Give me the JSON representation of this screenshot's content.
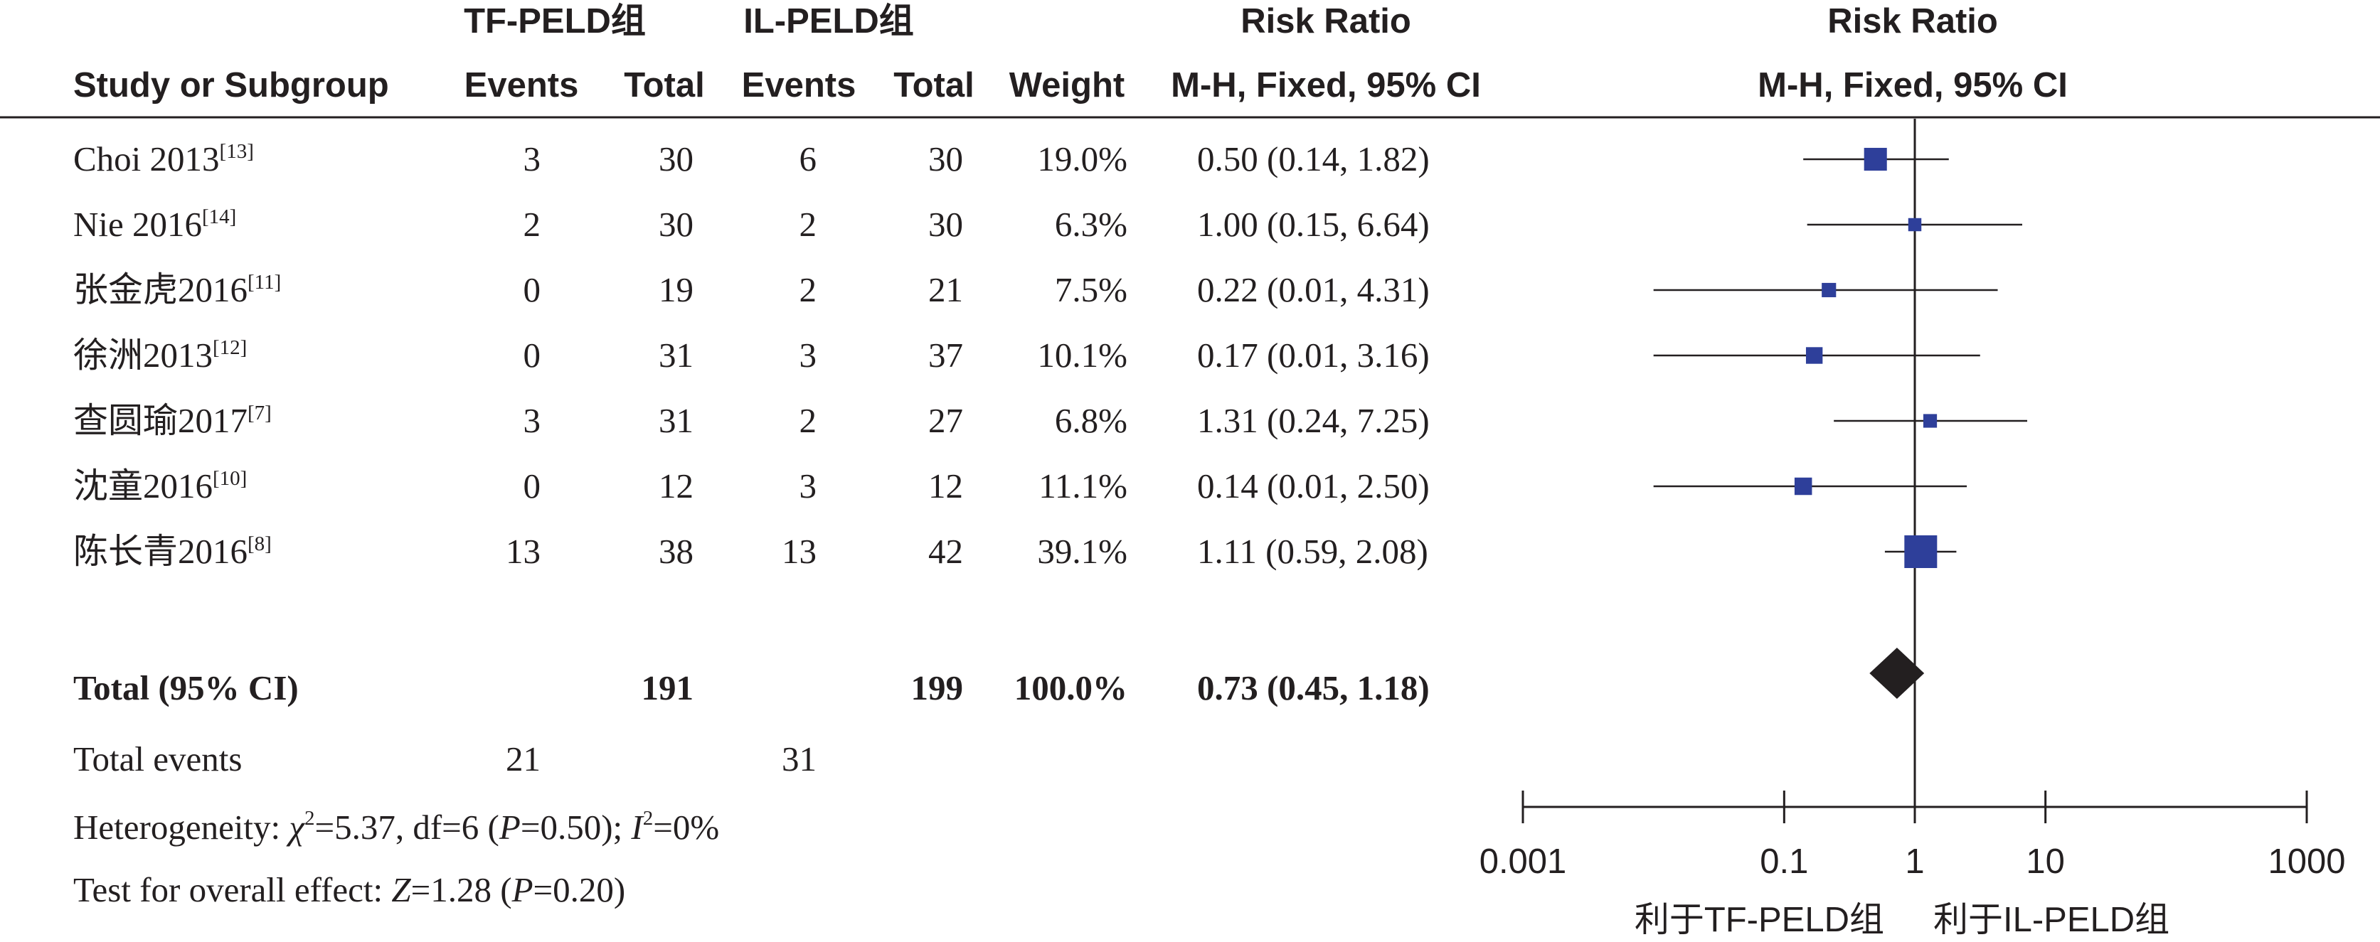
{
  "table": {
    "group1_name": "TF-PELD组",
    "group2_name": "IL-PELD组",
    "rr_label": "Risk Ratio",
    "method_label": "M-H, Fixed, 95% CI",
    "col_study": "Study or Subgroup",
    "col_events": "Events",
    "col_total": "Total",
    "col_weight": "Weight",
    "total_label": "Total (95% CI)",
    "total_group1": "191",
    "total_group2": "199",
    "total_weight": "100.0%",
    "total_ci": "0.73 (0.45, 1.18)",
    "total_events_label": "Total events",
    "total_events_group1": "21",
    "total_events_group2": "31",
    "heterogeneity": {
      "prefix": "Heterogeneity: ",
      "chi": "χ",
      "chi_sq": "2",
      "chi_value": "=5.37, df=6 (",
      "p": "P",
      "p_value": "=0.50); ",
      "i": "I",
      "i_sq": "2",
      "i_value": "=0%"
    },
    "overall": {
      "prefix": "Test for overall effect: ",
      "z": "Z",
      "z_value": "=1.28 (",
      "p": "P",
      "p_value": "=0.20)"
    }
  },
  "axis": {
    "favours_left": "利于TF-PELD组",
    "favours_right": "利于IL-PELD组"
  },
  "colors": {
    "marker": "#2e3f9a",
    "diamond": "#231f20",
    "text": "#231f20"
  },
  "chart_data": {
    "type": "forest",
    "x_scale": "log",
    "xlim": [
      0.001,
      1000
    ],
    "x_ticks": [
      "0.001",
      "0.1",
      "1",
      "10",
      "1000"
    ],
    "x_tick_values": [
      0.001,
      0.1,
      1,
      10,
      1000
    ],
    "reference_line": 1,
    "studies": [
      {
        "study": "Choi 2013",
        "ref": "[13]",
        "e1": "3",
        "n1": "30",
        "e2": "6",
        "n2": "30",
        "weight": "19.0%",
        "ci_text": "0.50 (0.14, 1.82)",
        "rr": 0.5,
        "lo": 0.14,
        "hi": 1.82,
        "w": 19.0
      },
      {
        "study": "Nie 2016",
        "ref": "[14]",
        "e1": "2",
        "n1": "30",
        "e2": "2",
        "n2": "30",
        "weight": "6.3%",
        "ci_text": "1.00 (0.15, 6.64)",
        "rr": 1.0,
        "lo": 0.15,
        "hi": 6.64,
        "w": 6.3
      },
      {
        "study": "张金虎2016",
        "ref": "[11]",
        "e1": "0",
        "n1": "19",
        "e2": "2",
        "n2": "21",
        "weight": "7.5%",
        "ci_text": "0.22 (0.01, 4.31)",
        "rr": 0.22,
        "lo": 0.01,
        "hi": 4.31,
        "w": 7.5
      },
      {
        "study": "徐洲2013",
        "ref": "[12]",
        "e1": "0",
        "n1": "31",
        "e2": "3",
        "n2": "37",
        "weight": "10.1%",
        "ci_text": "0.17 (0.01, 3.16)",
        "rr": 0.17,
        "lo": 0.01,
        "hi": 3.16,
        "w": 10.1
      },
      {
        "study": "查圆瑜2017",
        "ref": "[7]",
        "e1": "3",
        "n1": "31",
        "e2": "2",
        "n2": "27",
        "weight": "6.8%",
        "ci_text": "1.31 (0.24, 7.25)",
        "rr": 1.31,
        "lo": 0.24,
        "hi": 7.25,
        "w": 6.8
      },
      {
        "study": "沈童2016",
        "ref": "[10]",
        "e1": "0",
        "n1": "12",
        "e2": "3",
        "n2": "12",
        "weight": "11.1%",
        "ci_text": "0.14 (0.01, 2.50)",
        "rr": 0.14,
        "lo": 0.01,
        "hi": 2.5,
        "w": 11.1
      },
      {
        "study": "陈长青2016",
        "ref": "[8]",
        "e1": "13",
        "n1": "38",
        "e2": "13",
        "n2": "42",
        "weight": "39.1%",
        "ci_text": "1.11 (0.59, 2.08)",
        "rr": 1.11,
        "lo": 0.59,
        "hi": 2.08,
        "w": 39.1
      }
    ],
    "pooled": {
      "rr": 0.73,
      "lo": 0.45,
      "hi": 1.18
    }
  }
}
